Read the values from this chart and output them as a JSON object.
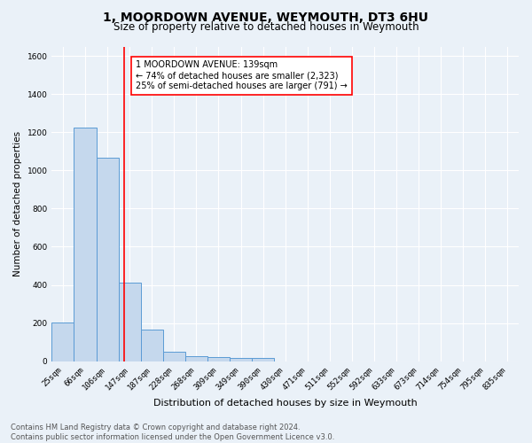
{
  "title": "1, MOORDOWN AVENUE, WEYMOUTH, DT3 6HU",
  "subtitle": "Size of property relative to detached houses in Weymouth",
  "xlabel": "Distribution of detached houses by size in Weymouth",
  "ylabel": "Number of detached properties",
  "categories": [
    "25sqm",
    "66sqm",
    "106sqm",
    "147sqm",
    "187sqm",
    "228sqm",
    "268sqm",
    "309sqm",
    "349sqm",
    "390sqm",
    "430sqm",
    "471sqm",
    "511sqm",
    "552sqm",
    "592sqm",
    "633sqm",
    "673sqm",
    "714sqm",
    "754sqm",
    "795sqm",
    "835sqm"
  ],
  "values": [
    205,
    1225,
    1065,
    410,
    165,
    48,
    26,
    20,
    15,
    18,
    0,
    0,
    0,
    0,
    0,
    0,
    0,
    0,
    0,
    0,
    0
  ],
  "bar_color": "#c5d8ed",
  "bar_edge_color": "#5b9bd5",
  "red_line_x": 2.75,
  "annotation_text": "1 MOORDOWN AVENUE: 139sqm\n← 74% of detached houses are smaller (2,323)\n25% of semi-detached houses are larger (791) →",
  "annotation_box_color": "white",
  "annotation_box_edge_color": "red",
  "ylim": [
    0,
    1650
  ],
  "yticks": [
    0,
    200,
    400,
    600,
    800,
    1000,
    1200,
    1400,
    1600
  ],
  "footer_text": "Contains HM Land Registry data © Crown copyright and database right 2024.\nContains public sector information licensed under the Open Government Licence v3.0.",
  "background_color": "#eaf1f8",
  "grid_color": "white",
  "title_fontsize": 10,
  "subtitle_fontsize": 8.5,
  "axis_label_fontsize": 7.5,
  "tick_fontsize": 6.5,
  "annotation_fontsize": 7,
  "footer_fontsize": 6
}
